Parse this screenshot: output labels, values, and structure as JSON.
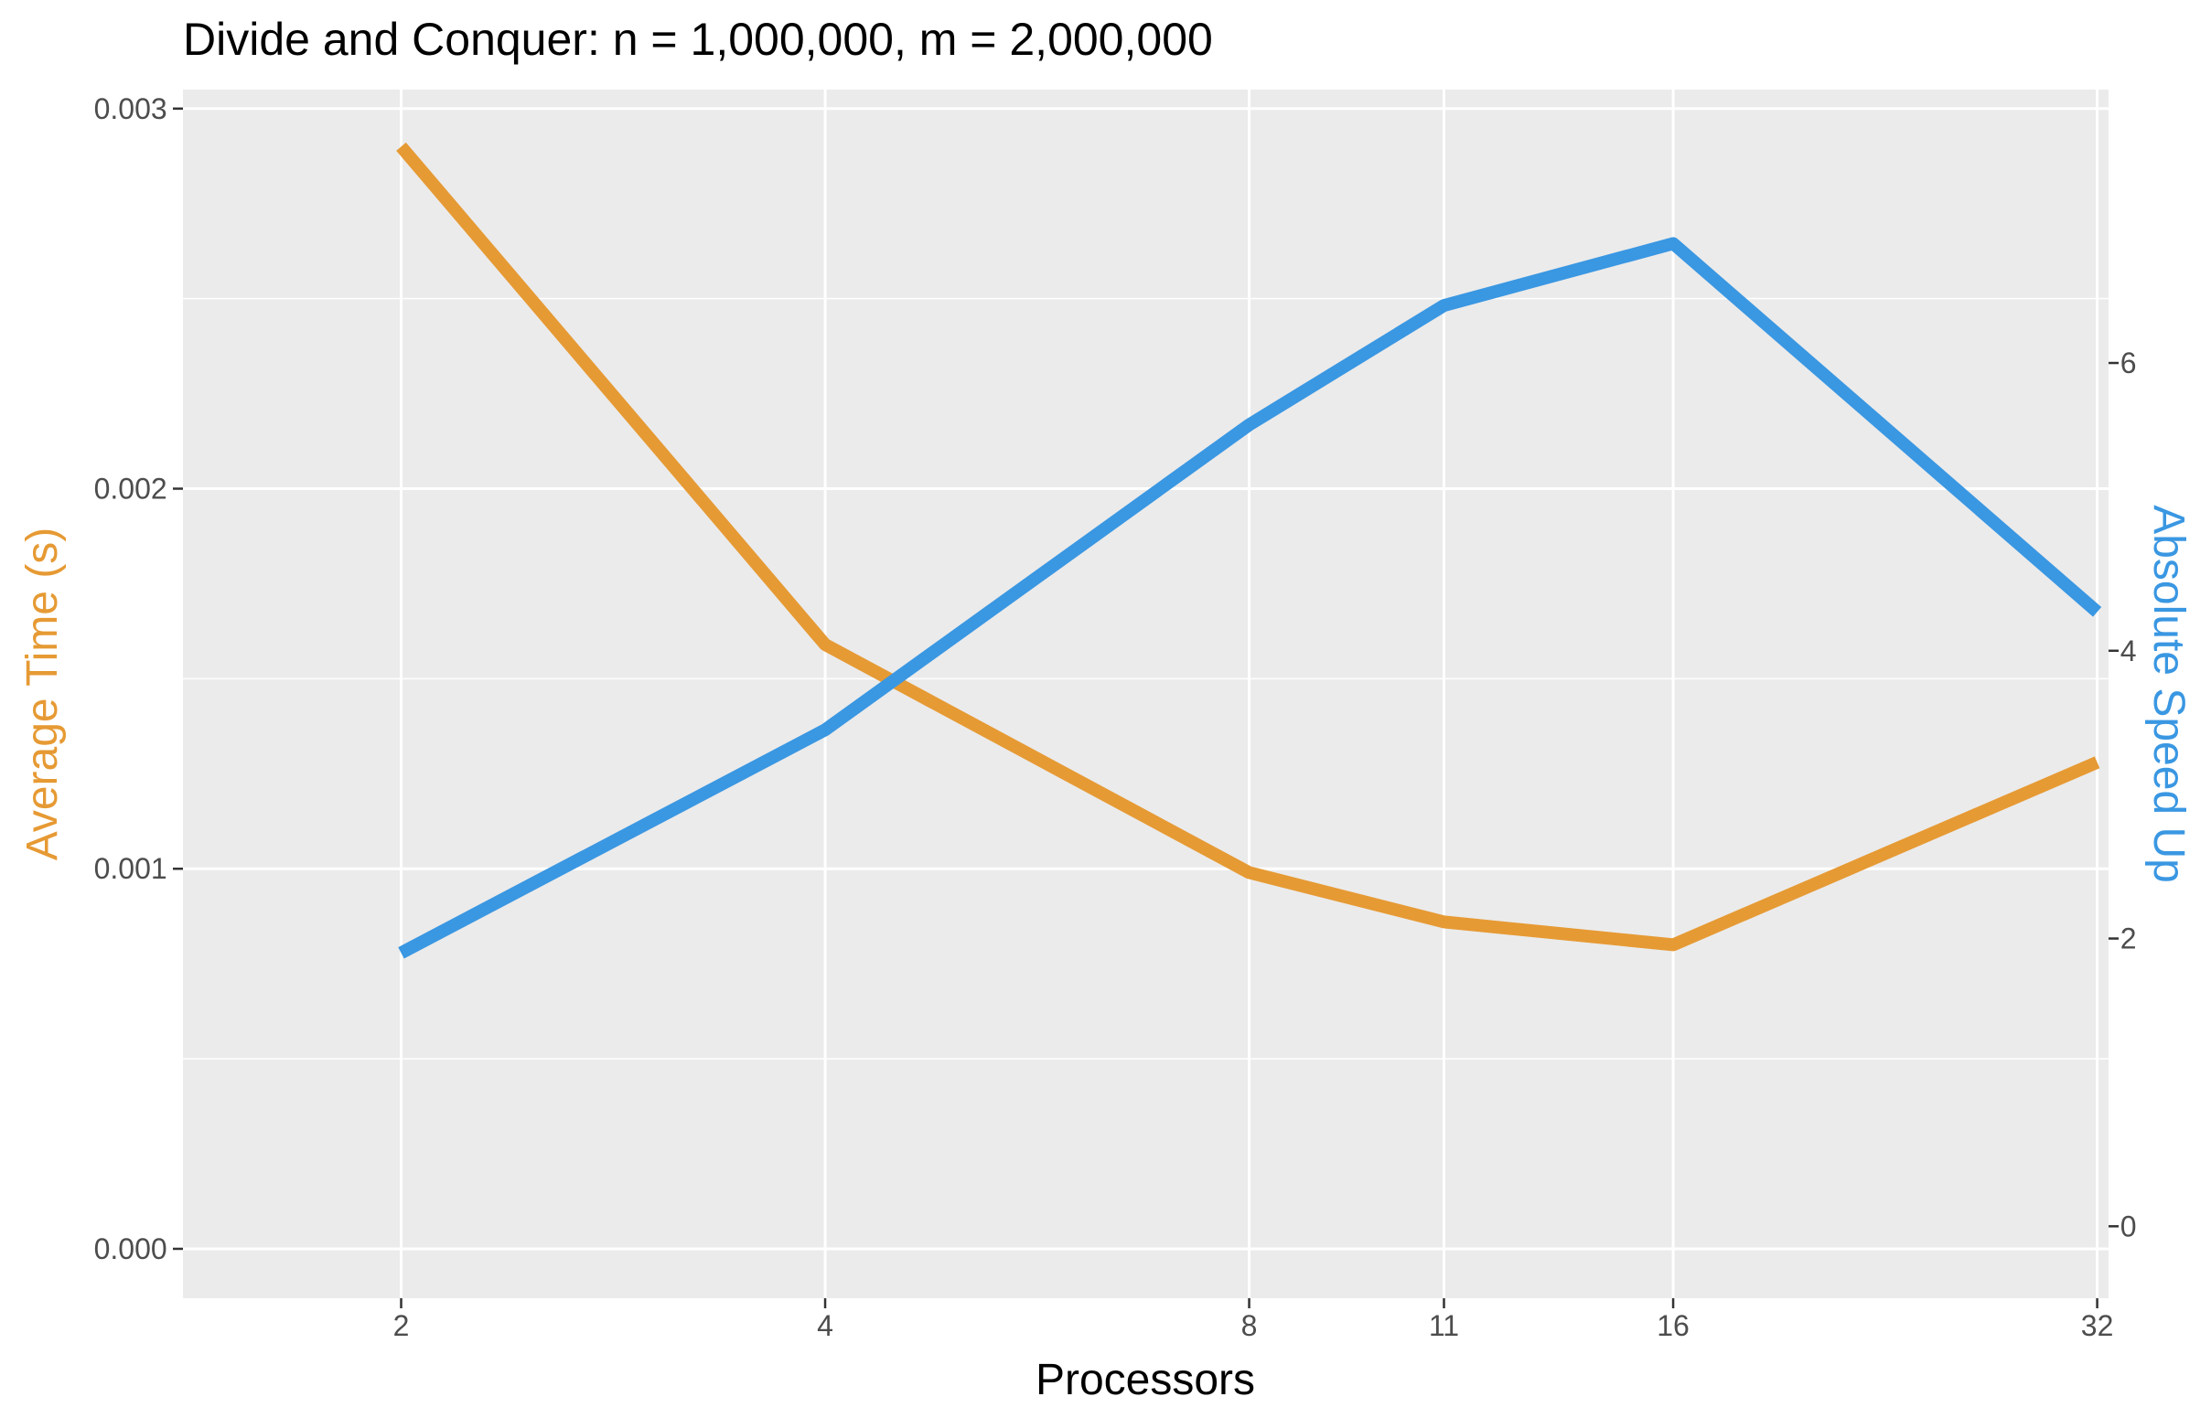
{
  "chart_data": {
    "type": "line",
    "title": "Divide and Conquer: n = 1,000,000, m = 2,000,000",
    "xlabel": "Processors",
    "ylabel_left": "Average Time (s)",
    "ylabel_right": "Absolute Speed Up",
    "x": [
      2,
      4,
      8,
      11,
      16,
      32
    ],
    "x_tick_labels": [
      "2",
      "4",
      "8",
      "11",
      "16",
      "32"
    ],
    "xlim": [
      1.4,
      32.6
    ],
    "ylim_left": [
      -0.00013,
      0.00305
    ],
    "ylim_right": [
      -0.5,
      7.9
    ],
    "y_left_ticks": [
      0.0,
      0.001,
      0.002,
      0.003
    ],
    "y_left_tick_labels": [
      "0.000",
      "0.001",
      "0.002",
      "0.003"
    ],
    "y_right_ticks": [
      0,
      2,
      4,
      6
    ],
    "y_right_tick_labels": [
      "0",
      "2",
      "4",
      "6"
    ],
    "grid": true,
    "series": [
      {
        "axis": "left",
        "color": "#E69A34",
        "values": [
          0.0029,
          0.00159,
          0.00099,
          0.00086,
          0.0008,
          0.00128
        ]
      },
      {
        "axis": "right",
        "color": "#3A97E2",
        "values": [
          1.9,
          3.45,
          5.57,
          6.4,
          6.83,
          4.27
        ]
      }
    ]
  }
}
